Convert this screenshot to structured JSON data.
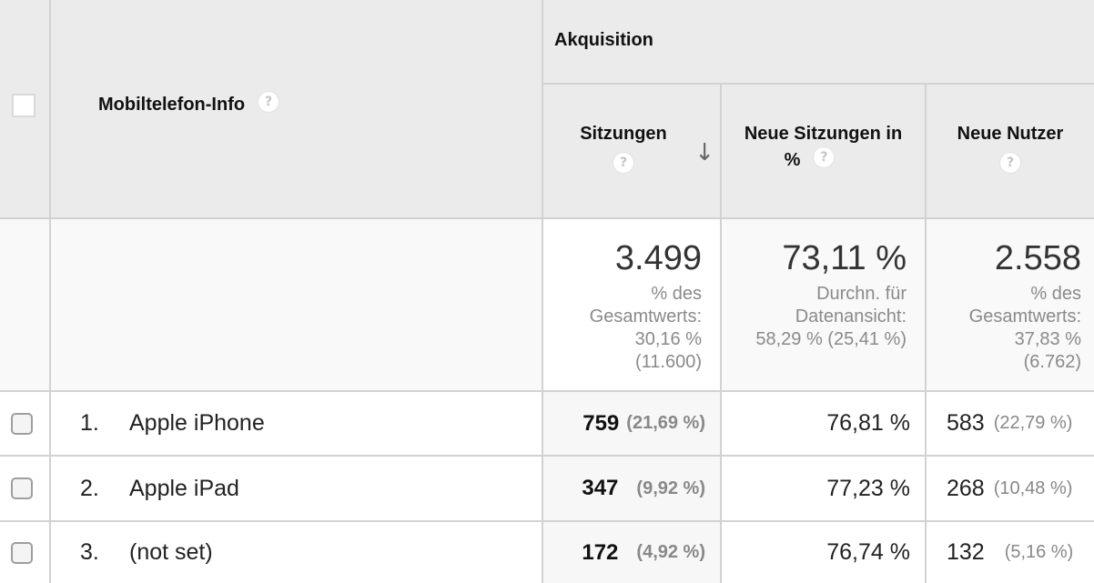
{
  "header": {
    "dimension_label": "Mobiltelefon-Info",
    "group_label": "Akquisition",
    "columns": {
      "sessions": "Sitzungen",
      "new_sessions_pct_line1": "Neue Sitzungen in",
      "new_sessions_pct_line2": "%",
      "new_users": "Neue Nutzer"
    },
    "help_glyph": "?",
    "sort_glyph": "↓"
  },
  "totals": {
    "sessions": {
      "value": "3.499",
      "line1": "% des",
      "line2": "Gesamtwerts:",
      "line3": "30,16 %",
      "line4": "(11.600)"
    },
    "new_sessions_pct": {
      "value": "73,11 %",
      "line1": "Durchn. für",
      "line2": "Datenansicht:",
      "line3": "58,29 % (25,41 %)"
    },
    "new_users": {
      "value": "2.558",
      "line1": "% des",
      "line2": "Gesamtwerts:",
      "line3": "37,83 %",
      "line4": "(6.762)"
    }
  },
  "rows": [
    {
      "index": "1.",
      "name": "Apple iPhone",
      "sessions": "759",
      "sessions_pct": "(21,69 %)",
      "new_sessions_pct": "76,81 %",
      "new_users": "583",
      "new_users_pct": "(22,79 %)"
    },
    {
      "index": "2.",
      "name": "Apple iPad",
      "sessions": "347",
      "sessions_pct": "(9,92 %)",
      "new_sessions_pct": "77,23 %",
      "new_users": "268",
      "new_users_pct": "(10,48 %)"
    },
    {
      "index": "3.",
      "name": "(not set)",
      "sessions": "172",
      "sessions_pct": "(4,92 %)",
      "new_sessions_pct": "76,74 %",
      "new_users": "132",
      "new_users_pct": "(5,16 %)"
    }
  ]
}
